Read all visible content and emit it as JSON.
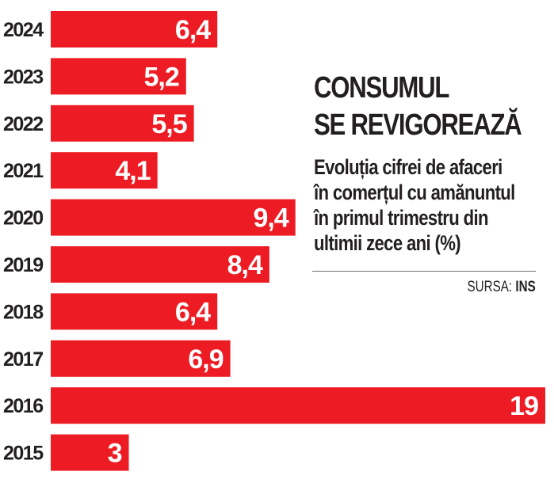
{
  "chart_data": {
    "type": "bar",
    "orientation": "horizontal",
    "title": "CONSUMUL SE REVIGOREAZĂ",
    "title_lines": [
      "CONSUMUL",
      "SE REVIGOREAZĂ"
    ],
    "subtitle": "Evoluția cifrei de afaceri în comerțul cu amănuntul în primul trimestru din ultimii zece ani (%)",
    "subtitle_lines": [
      "Evoluția cifrei de afaceri",
      "în comerțul cu amănuntul",
      "în primul trimestru din",
      "ultimii zece ani (%)"
    ],
    "source_label": "SURSA:",
    "source_name": "INS",
    "categories": [
      "2024",
      "2023",
      "2022",
      "2021",
      "2020",
      "2019",
      "2018",
      "2017",
      "2016",
      "2015"
    ],
    "values": [
      6.4,
      5.2,
      5.5,
      4.1,
      9.4,
      8.4,
      6.4,
      6.9,
      19,
      3
    ],
    "value_labels": [
      "6,4",
      "5,2",
      "5,5",
      "4,1",
      "9,4",
      "8,4",
      "6,4",
      "6,9",
      "19",
      "3"
    ],
    "xlabel": "",
    "ylabel": "",
    "xlim": [
      0,
      19
    ],
    "grid": false,
    "legend": "none",
    "bar_color": "#ed1c24",
    "text_color": "#231f20"
  }
}
